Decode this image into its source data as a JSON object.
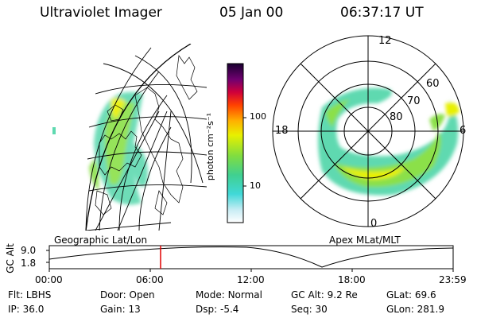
{
  "header": {
    "title": "Ultraviolet Imager",
    "date": "05 Jan 00",
    "time": "06:37:17 UT"
  },
  "colorbar": {
    "unit_label": "photon cm⁻²s⁻¹",
    "ticks": [
      "100",
      "10"
    ]
  },
  "panels": {
    "left_label": "Geographic Lat/Lon",
    "right_label": "Apex MLat/MLT"
  },
  "polar": {
    "mlt_labels": {
      "top": "12",
      "left": "18",
      "right": "6",
      "bottom": "0"
    },
    "lat_labels": [
      "60",
      "70",
      "80"
    ]
  },
  "timeline": {
    "ylabel": "GC Alt",
    "yticks": [
      "9.0",
      "1.8"
    ],
    "xticks": [
      "00:00",
      "06:00",
      "12:00",
      "18:00",
      "23:59"
    ],
    "marker_fraction": 0.276
  },
  "info": {
    "row1": [
      {
        "key": "Flt:",
        "value": "LBHS"
      },
      {
        "key": "Door:",
        "value": "Open"
      },
      {
        "key": "Mode:",
        "value": "Normal"
      },
      {
        "key": "GC Alt:",
        "value": "9.2 Re"
      },
      {
        "key": "GLat:",
        "value": "69.6"
      }
    ],
    "row2": [
      {
        "key": "IP:",
        "value": "36.0"
      },
      {
        "key": "Gain:",
        "value": "13"
      },
      {
        "key": "Dsp:",
        "value": "-5.4"
      },
      {
        "key": "Seq:",
        "value": "30"
      },
      {
        "key": "GLon:",
        "value": "281.9"
      }
    ]
  },
  "colors": {
    "aurora_low": "#5fd9b0",
    "aurora_mid": "#8be04a",
    "aurora_high": "#e8f000",
    "marker": "#e00000"
  }
}
